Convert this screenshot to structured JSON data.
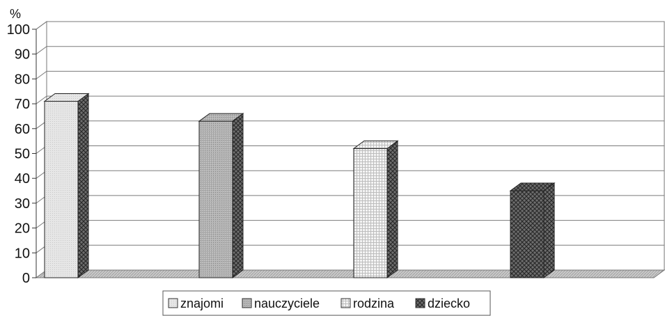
{
  "chart_data": {
    "type": "bar",
    "y_unit": "%",
    "categories": [
      "znajomi",
      "nauczyciele",
      "rodzina",
      "dziecko"
    ],
    "values": [
      71,
      63,
      52,
      35
    ],
    "ylim": [
      0,
      100
    ],
    "yticks": [
      "0",
      "10",
      "20",
      "30",
      "40",
      "50",
      "60",
      "70",
      "80",
      "90",
      "100"
    ],
    "grid": true,
    "style": "3d",
    "legend": {
      "position": "bottom",
      "items": [
        "znajomi",
        "nauczyciele",
        "rodzina",
        "dziecko"
      ]
    }
  }
}
